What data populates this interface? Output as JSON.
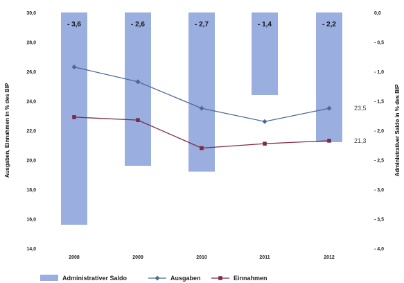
{
  "chart_data": {
    "type": "bar+line",
    "categories": [
      "2008",
      "2009",
      "2010",
      "2011",
      "2012"
    ],
    "left_axis": {
      "label": "Ausgaben, Einnahmen in % des BIP",
      "ylim": [
        14.0,
        30.0
      ],
      "ticks": [
        "30,0",
        "28,0",
        "26,0",
        "24,0",
        "22,0",
        "20,0",
        "18,0",
        "16,0",
        "14,0"
      ]
    },
    "right_axis": {
      "label": "Administrativer Saldo in % des BIP",
      "ylim": [
        -4.0,
        0.0
      ],
      "ticks": [
        "0,0",
        "- 0,5",
        "- 1,0",
        "- 1,5",
        "- 2,0",
        "- 2,5",
        "- 3,0",
        "- 3,5",
        "- 4,0"
      ]
    },
    "bars": {
      "name": "Administrativer Saldo",
      "axis": "right",
      "values": [
        -3.6,
        -2.6,
        -2.7,
        -1.4,
        -2.2
      ],
      "labels": [
        "- 3,6",
        "- 2,6",
        "- 2,7",
        "- 1,4",
        "- 2,2"
      ],
      "color": "#9aaedf"
    },
    "series": [
      {
        "name": "Ausgaben",
        "axis": "left",
        "values": [
          26.3,
          25.3,
          23.5,
          22.6,
          23.5
        ],
        "end_label": "23,5",
        "color": "#4a6a9a",
        "marker": "diamond"
      },
      {
        "name": "Einnahmen",
        "axis": "left",
        "values": [
          22.9,
          22.7,
          20.8,
          21.1,
          21.3
        ],
        "end_label": "21,3",
        "color": "#7a2b4a",
        "marker": "square"
      }
    ],
    "legend_position": "bottom",
    "grid": false
  }
}
